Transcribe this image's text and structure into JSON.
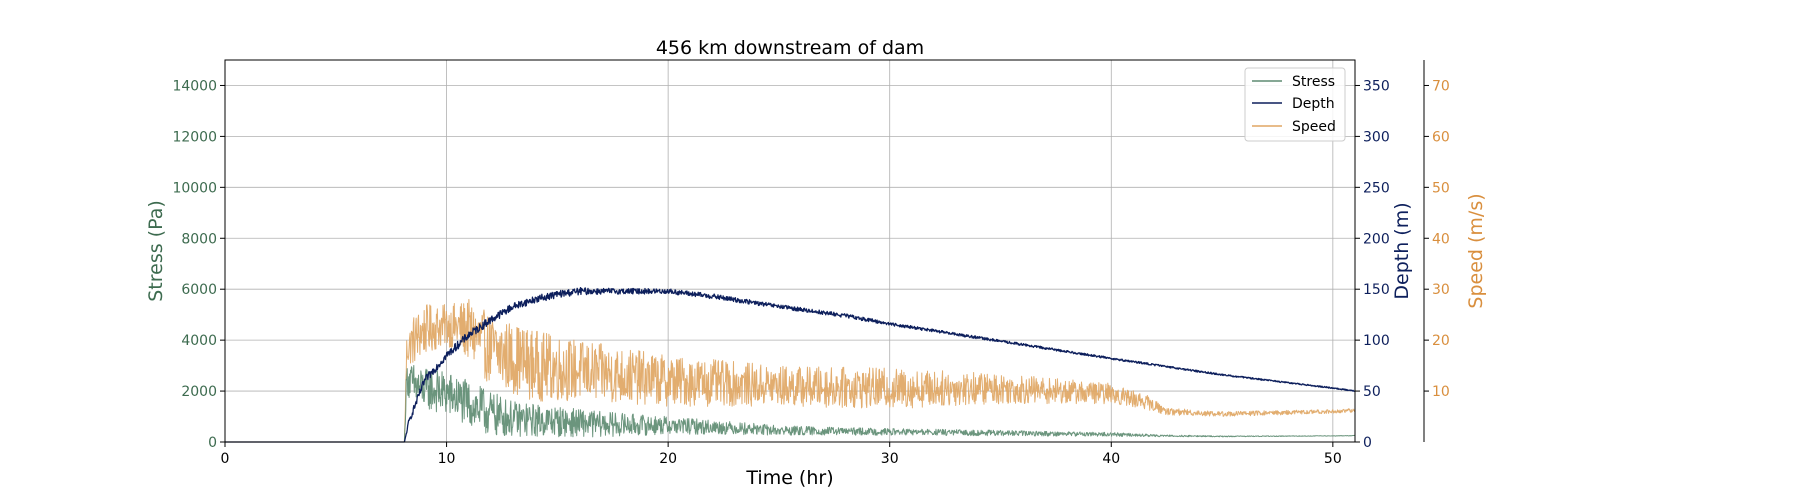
{
  "chart_data": {
    "type": "line",
    "title": "456 km downstream of dam",
    "xlabel": "Time (hr)",
    "xlim": [
      0,
      51
    ],
    "x_ticks": [
      0,
      10,
      20,
      30,
      40,
      50
    ],
    "grid": true,
    "legend_position": "top-right",
    "axes": [
      {
        "id": "stress",
        "side": "left",
        "label": "Stress (Pa)",
        "color": "#3d6b4f",
        "ylim": [
          0,
          15000
        ],
        "ticks": [
          0,
          2000,
          4000,
          6000,
          8000,
          10000,
          12000,
          14000
        ]
      },
      {
        "id": "depth",
        "side": "right",
        "label": "Depth (m)",
        "color": "#0d1f5c",
        "ylim": [
          0,
          375
        ],
        "ticks": [
          0,
          50,
          100,
          150,
          200,
          250,
          300,
          350
        ]
      },
      {
        "id": "speed",
        "side": "right-outer",
        "label": "Speed (m/s)",
        "color": "#d98f3e",
        "ylim": [
          0,
          75
        ],
        "ticks": [
          10,
          20,
          30,
          40,
          50,
          60,
          70
        ]
      }
    ],
    "series": [
      {
        "name": "Stress",
        "axis": "stress",
        "color": "#5e8c72",
        "x": [
          0,
          8.1,
          8.2,
          8.5,
          9,
          10,
          11,
          12,
          13,
          15,
          17,
          20,
          23,
          25,
          28,
          30,
          35,
          40,
          42,
          45,
          50,
          51
        ],
        "y": [
          0,
          0,
          2500,
          2200,
          2100,
          1900,
          1500,
          1100,
          900,
          800,
          700,
          650,
          550,
          450,
          420,
          400,
          350,
          300,
          250,
          220,
          240,
          250
        ],
        "noise": [
          0,
          0,
          600,
          900,
          800,
          900,
          900,
          900,
          700,
          600,
          500,
          350,
          250,
          200,
          150,
          130,
          110,
          80,
          40,
          20,
          10,
          10
        ]
      },
      {
        "name": "Depth",
        "axis": "depth",
        "color": "#0d1f5c",
        "x": [
          0,
          8.1,
          8.3,
          9,
          10,
          11,
          12,
          13,
          14,
          15,
          16,
          17,
          20,
          22,
          25,
          28,
          30,
          35,
          40,
          45,
          50,
          51
        ],
        "y": [
          0,
          0,
          20,
          60,
          85,
          105,
          120,
          133,
          140,
          145,
          148,
          148,
          148,
          143,
          133,
          124,
          116,
          99,
          82,
          66,
          53,
          50
        ],
        "noise": [
          0,
          0,
          3,
          4,
          4,
          4,
          4,
          3.5,
          3.5,
          3.5,
          3.5,
          3,
          2.5,
          2.5,
          2,
          2,
          1.5,
          1.2,
          1,
          0.8,
          0.6,
          0.6
        ]
      },
      {
        "name": "Speed",
        "axis": "speed",
        "color": "#e0a663",
        "x": [
          0,
          8.1,
          8.2,
          8.5,
          9,
          10,
          11,
          12,
          14,
          16,
          20,
          25,
          30,
          35,
          40,
          41.5,
          42.5,
          45,
          50,
          51
        ],
        "y": [
          0,
          0,
          18,
          20,
          22,
          23,
          22,
          18,
          15,
          14,
          12,
          11,
          10.5,
          10.5,
          9.5,
          8,
          6,
          5.5,
          6,
          6.2
        ],
        "noise": [
          0,
          0,
          3,
          5,
          5,
          4,
          6,
          7,
          7,
          6,
          5,
          4,
          4,
          3,
          2,
          1.5,
          0.7,
          0.5,
          0.4,
          0.4
        ]
      }
    ]
  }
}
